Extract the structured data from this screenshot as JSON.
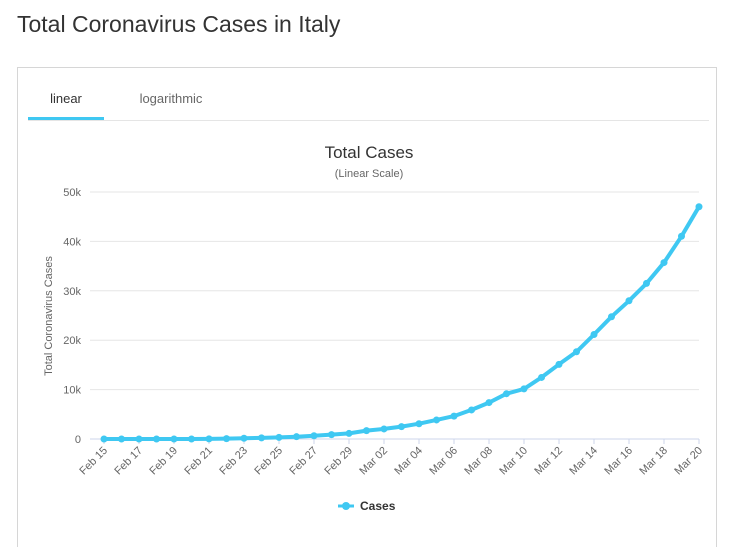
{
  "page": {
    "title": "Total Coronavirus Cases in Italy"
  },
  "tabs": [
    {
      "label": "linear",
      "active": true
    },
    {
      "label": "logarithmic",
      "active": false
    }
  ],
  "colors": {
    "series": "#3fc8f2",
    "tab_underline": "#3fc8f2",
    "grid": "#e6e6e6"
  },
  "chart_data": {
    "type": "line",
    "title": "Total Cases",
    "subtitle": "(Linear Scale)",
    "ylabel": "Total Coronavirus Cases",
    "xlabel": "",
    "ylim": [
      0,
      50000
    ],
    "yticks": [
      "0",
      "10k",
      "20k",
      "30k",
      "40k",
      "50k"
    ],
    "ytick_values": [
      0,
      10000,
      20000,
      30000,
      40000,
      50000
    ],
    "grid": true,
    "legend": "bottom",
    "x": [
      "Feb 15",
      "Feb 16",
      "Feb 17",
      "Feb 18",
      "Feb 19",
      "Feb 20",
      "Feb 21",
      "Feb 22",
      "Feb 23",
      "Feb 24",
      "Feb 25",
      "Feb 26",
      "Feb 27",
      "Feb 28",
      "Feb 29",
      "Mar 01",
      "Mar 02",
      "Mar 03",
      "Mar 04",
      "Mar 05",
      "Mar 06",
      "Mar 07",
      "Mar 08",
      "Mar 09",
      "Mar 10",
      "Mar 11",
      "Mar 12",
      "Mar 13",
      "Mar 14",
      "Mar 15",
      "Mar 16",
      "Mar 17",
      "Mar 18",
      "Mar 19",
      "Mar 20"
    ],
    "xtick_labels": [
      "Feb 15",
      "Feb 17",
      "Feb 19",
      "Feb 21",
      "Feb 23",
      "Feb 25",
      "Feb 27",
      "Feb 29",
      "Mar 02",
      "Mar 04",
      "Mar 06",
      "Mar 08",
      "Mar 10",
      "Mar 12",
      "Mar 14",
      "Mar 16",
      "Mar 18",
      "Mar 20"
    ],
    "series": [
      {
        "name": "Cases",
        "values": [
          3,
          3,
          3,
          3,
          3,
          3,
          20,
          79,
          157,
          229,
          323,
          470,
          655,
          889,
          1128,
          1694,
          2036,
          2502,
          3089,
          3858,
          4636,
          5883,
          7375,
          9172,
          10149,
          12462,
          15113,
          17660,
          21157,
          24747,
          27980,
          31506,
          35713,
          41035,
          47021
        ]
      }
    ]
  }
}
